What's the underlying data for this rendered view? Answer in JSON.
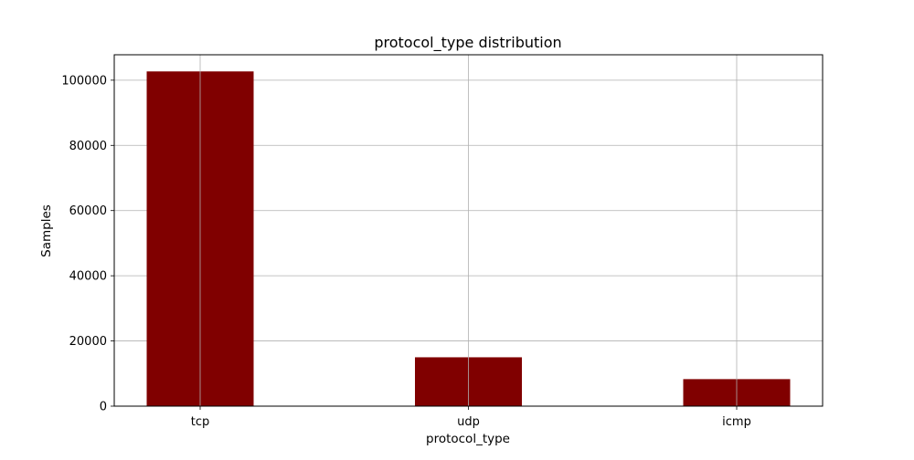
{
  "chart_data": {
    "type": "bar",
    "title": "protocol_type distribution",
    "xlabel": "protocol_type",
    "ylabel": "Samples",
    "categories": [
      "tcp",
      "udp",
      "icmp"
    ],
    "values": [
      102689,
      14993,
      8291
    ],
    "ylim": [
      0,
      107800
    ],
    "yticks": [
      0,
      20000,
      40000,
      60000,
      80000,
      100000
    ],
    "grid": true,
    "bar_color": "#800000"
  }
}
